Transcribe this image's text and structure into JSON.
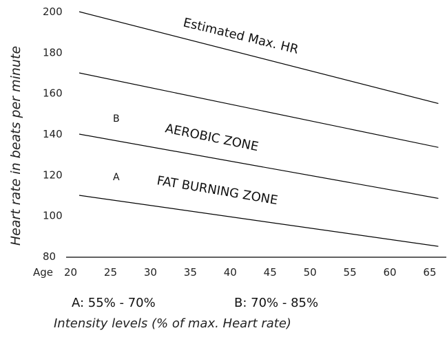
{
  "chart_data": {
    "type": "line",
    "x": [
      20,
      65
    ],
    "xlim": [
      20,
      66
    ],
    "ylim": [
      80,
      200
    ],
    "xticks": [
      20,
      25,
      30,
      35,
      40,
      45,
      50,
      55,
      60,
      65
    ],
    "yticks": [
      80,
      100,
      120,
      140,
      160,
      180,
      200
    ],
    "x_axis_prefix": "Age",
    "ylabel": "Heart rate in beats per minute",
    "xlabel": "Intensity levels (% of max. Heart rate)",
    "series": [
      {
        "values": [
          200,
          155
        ]
      },
      {
        "values": [
          170,
          133.5
        ]
      },
      {
        "values": [
          140,
          108.5
        ]
      },
      {
        "values": [
          110,
          85
        ]
      }
    ],
    "annotations": {
      "max_hr": "Estimated Max. HR",
      "aerobic": "AEROBIC ZONE",
      "fat_burning": "FAT BURNING ZONE",
      "letter_b": "B",
      "letter_a": "A"
    },
    "legend": {
      "a": "A:  55% - 70%",
      "b": "B:  70% - 85%"
    }
  }
}
